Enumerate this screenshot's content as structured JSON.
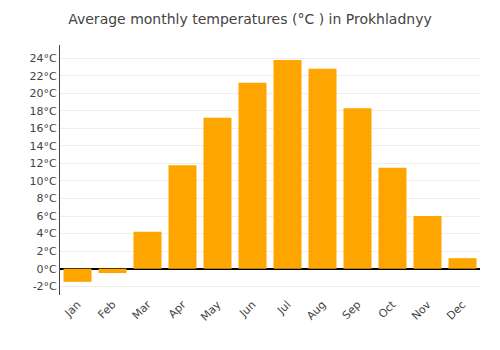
{
  "chart_data": {
    "type": "bar",
    "title": "Average monthly temperatures (°C ) in Prokhladnyy",
    "categories": [
      "Jan",
      "Feb",
      "Mar",
      "Apr",
      "May",
      "Jun",
      "Jul",
      "Aug",
      "Sep",
      "Oct",
      "Nov",
      "Dec"
    ],
    "values": [
      -1.5,
      -0.5,
      4.2,
      11.8,
      17.2,
      21.2,
      23.8,
      22.8,
      18.3,
      11.5,
      6.0,
      1.2
    ],
    "color": "#FFA500",
    "ylim": [
      -3,
      25.5
    ],
    "yticks": [
      {
        "value": -2,
        "label": "-2°C"
      },
      {
        "value": 0,
        "label": "0°C"
      },
      {
        "value": 2,
        "label": "2°C"
      },
      {
        "value": 4,
        "label": "4°C"
      },
      {
        "value": 6,
        "label": "6°C"
      },
      {
        "value": 8,
        "label": "8°C"
      },
      {
        "value": 10,
        "label": "10°C"
      },
      {
        "value": 12,
        "label": "12°C"
      },
      {
        "value": 14,
        "label": "14°C"
      },
      {
        "value": 16,
        "label": "16°C"
      },
      {
        "value": 18,
        "label": "18°C"
      },
      {
        "value": 20,
        "label": "20°C"
      },
      {
        "value": 22,
        "label": "22°C"
      },
      {
        "value": 24,
        "label": "24°C"
      }
    ],
    "grid": true
  }
}
